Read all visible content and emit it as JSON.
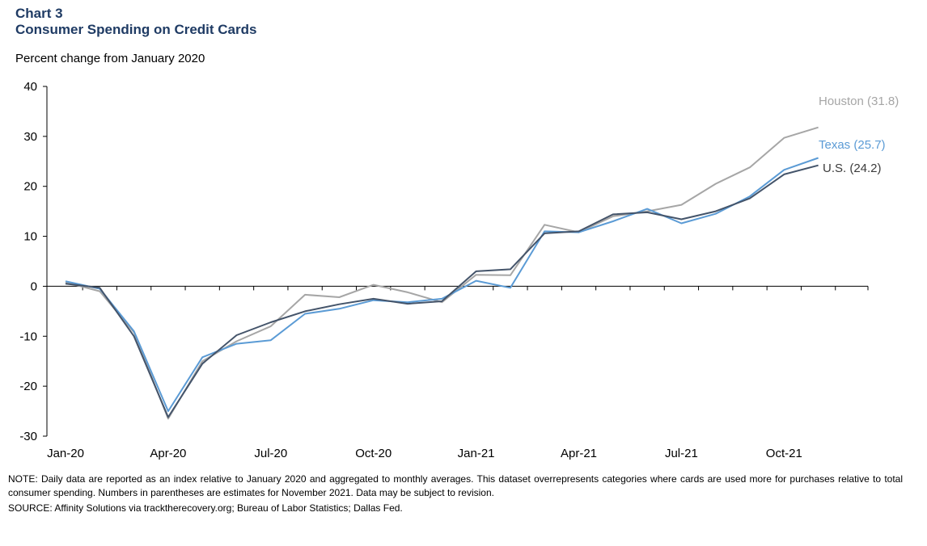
{
  "header": {
    "chart_number": "Chart 3",
    "title": "Consumer Spending on Credit Cards",
    "subtitle": "Percent change from January 2020"
  },
  "chart_data": {
    "type": "line",
    "ylabel": "Percent change from January 2020",
    "ylim": [
      -30,
      40
    ],
    "yticks": [
      40,
      30,
      20,
      10,
      0,
      -10,
      -20,
      -30
    ],
    "x": [
      "Jan-20",
      "Feb-20",
      "Mar-20",
      "Apr-20",
      "May-20",
      "Jun-20",
      "Jul-20",
      "Aug-20",
      "Sep-20",
      "Oct-20",
      "Nov-20",
      "Dec-20",
      "Jan-21",
      "Feb-21",
      "Mar-21",
      "Apr-21",
      "May-21",
      "Jun-21",
      "Jul-21",
      "Aug-21",
      "Sep-21",
      "Oct-21",
      "Nov-21"
    ],
    "xtick_labels": [
      "Jan-20",
      "Apr-20",
      "Jul-20",
      "Oct-20",
      "Jan-21",
      "Apr-21",
      "Jul-21",
      "Oct-21"
    ],
    "xtick_indices": [
      0,
      3,
      6,
      9,
      12,
      15,
      18,
      21
    ],
    "series": [
      {
        "name": "Houston",
        "label": "Houston (31.8)",
        "color": "#a6a6a6",
        "values": [
          0.8,
          -1.0,
          -9.2,
          -26.5,
          -15.0,
          -11.0,
          -8.0,
          -1.7,
          -2.2,
          0.3,
          -1.2,
          -3.2,
          2.3,
          2.2,
          12.3,
          10.8,
          14.0,
          15.0,
          16.3,
          20.5,
          23.8,
          29.7,
          31.8
        ]
      },
      {
        "name": "Texas",
        "label": "Texas (25.7)",
        "color": "#5b9bd5",
        "values": [
          1.0,
          -0.5,
          -9.0,
          -25.0,
          -14.2,
          -11.5,
          -10.8,
          -5.5,
          -4.5,
          -2.8,
          -3.2,
          -2.5,
          1.1,
          -0.3,
          11.0,
          10.8,
          13.0,
          15.5,
          12.6,
          14.5,
          18.0,
          23.3,
          25.7
        ]
      },
      {
        "name": "U.S.",
        "label": "U.S. (24.2)",
        "color": "#44546a",
        "values": [
          0.5,
          -0.3,
          -10.0,
          -26.2,
          -15.5,
          -9.8,
          -7.2,
          -5.0,
          -3.6,
          -2.5,
          -3.5,
          -3.0,
          3.0,
          3.4,
          10.6,
          11.0,
          14.4,
          14.8,
          13.4,
          15.0,
          17.6,
          22.4,
          24.2
        ]
      }
    ]
  },
  "footer": {
    "note": "NOTE: Daily data are reported as an index relative to January 2020 and aggregated to monthly averages. This dataset overrepresents categories where cards are used more for purchases relative to total consumer spending. Numbers in parentheses are estimates for November 2021. Data may be subject to revision.",
    "source": "SOURCE: Affinity Solutions via tracktherecovery.org; Bureau of Labor Statistics; Dallas Fed."
  }
}
